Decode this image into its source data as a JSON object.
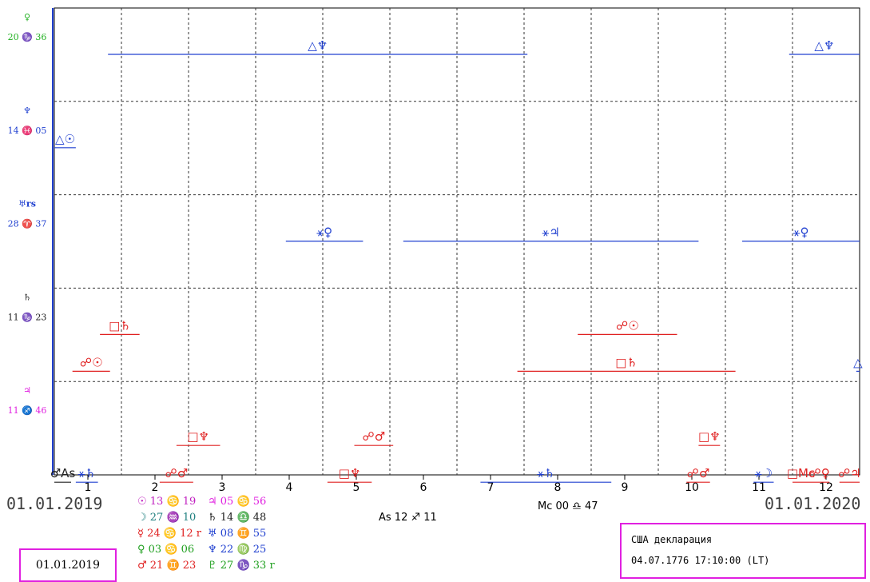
{
  "chart_data": {
    "type": "timeline",
    "x_months": [
      "1",
      "2",
      "3",
      "4",
      "5",
      "6",
      "7",
      "8",
      "9",
      "10",
      "11",
      "12"
    ],
    "xlim": [
      0.5,
      12.5
    ],
    "rows": [
      {
        "planet_symbol": "♀",
        "position": "20 ♑ 36",
        "color": "#20b020",
        "spans": [
          {
            "label": "△♆",
            "start": 1.3,
            "end": 7.55,
            "color": "#2040d0"
          },
          {
            "label": "△♆",
            "start": 11.45,
            "end": 12.5,
            "color": "#2040d0"
          }
        ]
      },
      {
        "planet_symbol": "♆",
        "position": "14 ♓ 05",
        "color": "#2040d0",
        "spans": [
          {
            "label": "△☉",
            "start": 0.5,
            "end": 0.82,
            "color": "#2040d0"
          }
        ]
      },
      {
        "planet_symbol": "♅rs",
        "position": "28 ♈ 37",
        "color": "#2040d0",
        "spans": [
          {
            "label": "⚹♀",
            "start": 3.95,
            "end": 5.1,
            "color": "#2040d0"
          },
          {
            "label": "⚹♃",
            "start": 5.7,
            "end": 10.1,
            "color": "#2040d0"
          },
          {
            "label": "⚹♀",
            "start": 10.75,
            "end": 12.5,
            "color": "#2040d0"
          }
        ]
      },
      {
        "planet_symbol": "♄",
        "position": "11 ♑ 23",
        "color": "#202020",
        "spans": [
          {
            "label": "□♄",
            "start": 1.18,
            "end": 1.77,
            "color": "#e02020",
            "lane": 0
          },
          {
            "label": "☍☉",
            "start": 0.77,
            "end": 1.33,
            "color": "#e02020",
            "lane": 1
          },
          {
            "label": "☍☉",
            "start": 8.3,
            "end": 9.78,
            "color": "#e02020",
            "lane": 0
          },
          {
            "label": "□♄",
            "start": 7.4,
            "end": 10.65,
            "color": "#e02020",
            "lane": 1
          },
          {
            "label": "△",
            "start": 12.45,
            "end": 12.5,
            "color": "#2040d0",
            "lane": 1
          }
        ]
      },
      {
        "planet_symbol": "♃",
        "position": "11 ♐ 46",
        "color": "#e020e0",
        "spans": [
          {
            "label": "□♆",
            "start": 2.32,
            "end": 2.97,
            "color": "#e02020",
            "lane": 0
          },
          {
            "label": "☍♂",
            "start": 4.97,
            "end": 5.55,
            "color": "#e02020",
            "lane": 0
          },
          {
            "label": "□♆",
            "start": 10.1,
            "end": 10.42,
            "color": "#e02020",
            "lane": 0
          },
          {
            "label": "♂As",
            "start": 0.5,
            "end": 0.75,
            "color": "#202020",
            "lane": 1
          },
          {
            "label": "⚹♄",
            "start": 0.82,
            "end": 1.15,
            "color": "#2040d0",
            "lane": 1
          },
          {
            "label": "☍♂",
            "start": 2.07,
            "end": 2.57,
            "color": "#e02020",
            "lane": 1
          },
          {
            "label": "□♆",
            "start": 4.57,
            "end": 5.23,
            "color": "#e02020",
            "lane": 1
          },
          {
            "label": "⚹♄",
            "start": 6.85,
            "end": 8.8,
            "color": "#2040d0",
            "lane": 1
          },
          {
            "label": "☍♂",
            "start": 9.92,
            "end": 10.27,
            "color": "#e02020",
            "lane": 1
          },
          {
            "label": "⚹☽",
            "start": 10.92,
            "end": 11.22,
            "color": "#2040d0",
            "lane": 1
          },
          {
            "label": "□Mc",
            "start": 11.5,
            "end": 11.75,
            "color": "#e02020",
            "lane": 1
          },
          {
            "label": "☍♀",
            "start": 11.75,
            "end": 12.05,
            "color": "#e02020",
            "lane": 1
          },
          {
            "label": "☍♃",
            "start": 12.2,
            "end": 12.5,
            "color": "#e02020",
            "lane": 1
          }
        ]
      }
    ]
  },
  "dates": {
    "start": "01.01.2019",
    "end": "01.01.2020"
  },
  "mc_label": "Mc 00 ♎ 47",
  "as_label": "As 12 ♐ 11",
  "positions_left": [
    {
      "text": "☉ 13 ♋ 19",
      "color": "#c020c0"
    },
    {
      "text": "☽ 27 ♒ 10",
      "color": "#208080"
    },
    {
      "text": "☿ 24 ♋ 12 r",
      "color": "#e02020"
    },
    {
      "text": "♀ 03 ♋ 06",
      "color": "#20a020"
    },
    {
      "text": "♂ 21 ♊ 23",
      "color": "#e02020"
    }
  ],
  "positions_right": [
    {
      "text": "♃ 05 ♋ 56",
      "color": "#e020e0"
    },
    {
      "text": "♄ 14 ♎ 48",
      "color": "#202020"
    },
    {
      "text": "♅ 08 ♊ 55",
      "color": "#2040d0"
    },
    {
      "text": "♆ 22 ♍ 25",
      "color": "#2040d0"
    },
    {
      "text": "♇ 27 ♑ 33 r",
      "color": "#20a020"
    }
  ],
  "date_box": "01.01.2019",
  "info_box": {
    "line1": "США декларация",
    "line2": "04.07.1776 17:10:00 (LT)"
  }
}
